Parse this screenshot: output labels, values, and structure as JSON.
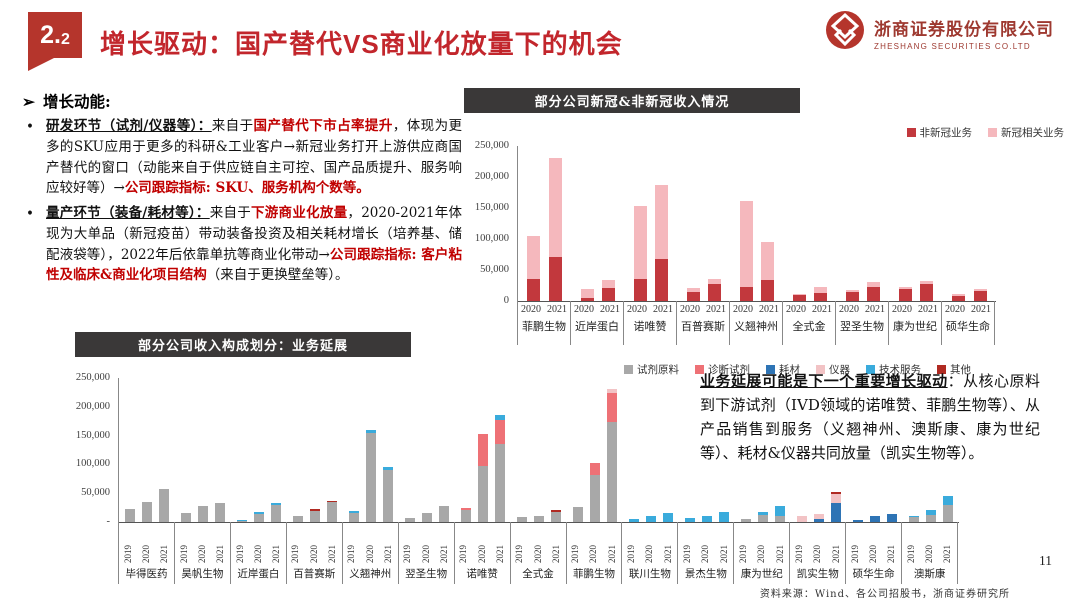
{
  "header": {
    "section_big": "2.",
    "section_small": "2",
    "title": "增长驱动：国产替代VS商业化放量下的机会",
    "logo": {
      "company_cn": "浙商证券股份有限公司",
      "company_en": "ZHESHANG SECURITIES CO.LTD"
    }
  },
  "left_panel": {
    "heading_marker": "➢",
    "heading": "增长动能:",
    "bullets": [
      {
        "marker": "•",
        "lead": "研发环节（试剂/仪器等）：",
        "segments": [
          {
            "t": "来自于"
          },
          {
            "t": "国产替代下市占率提升",
            "s": "hl"
          },
          {
            "t": "，体现为更多的SKU应用于更多的科研&工业客户→新冠业务打开上游供应商国产替代的窗口（动能来自于供应链自主可控、国产品质提升、服务响应较好等）→"
          },
          {
            "t": "公司跟踪指标: SKU、服务机构个数等。",
            "s": "hl"
          }
        ]
      },
      {
        "marker": "•",
        "lead": "量产环节（装备/耗材等）：",
        "segments": [
          {
            "t": "来自于"
          },
          {
            "t": "下游商业化放量",
            "s": "hl"
          },
          {
            "t": "，2020-2021年体现为大单品（新冠疫苗）带动装备投资及相关耗材增长（培养基、储配液袋等），2022年后依靠单抗等商业化带动→"
          },
          {
            "t": "公司跟踪指标: 客户粘性及临床&商业化项目结构",
            "s": "hl"
          },
          {
            "t": "（来自于更换壁垒等）。"
          }
        ]
      }
    ]
  },
  "note": {
    "segments": [
      {
        "t": "业务延展可能是下一个重要增长驱动",
        "s": "lead"
      },
      {
        "t": "：从核心原料到下游试剂（IVD领域的诺唯赞、菲鹏生物等）、从产品销售到服务（义翘神州、澳斯康、康为世纪等）、耗材&仪器共同放量（凯实生物等）。"
      }
    ]
  },
  "footer": {
    "source": "资料来源：Wind、各公司招股书，浙商证券研究所",
    "page_number": "11"
  },
  "chart_data": [
    {
      "type": "bar",
      "stacked": true,
      "title": "部分公司新冠&非新冠收入情况",
      "categories": [
        "菲鹏生物",
        "近岸蛋白",
        "诺唯赞",
        "百普赛斯",
        "义翘神州",
        "全式金",
        "翌圣生物",
        "康为世纪",
        "硕华生命"
      ],
      "x_sub": [
        "2020",
        "2021"
      ],
      "ylim": [
        0,
        250000
      ],
      "yticks": [
        "250,000",
        "200,000",
        "150,000",
        "100,000",
        "50,000",
        "0"
      ],
      "legend_position": "top-right",
      "grid": false,
      "series": [
        {
          "name": "非新冠业务",
          "color": "#c2383d",
          "values": [
            [
              36000,
              71000
            ],
            [
              5000,
              21000
            ],
            [
              36000,
              68000
            ],
            [
              14000,
              27000
            ],
            [
              22000,
              34000
            ],
            [
              10000,
              13000
            ],
            [
              14000,
              23000
            ],
            [
              19000,
              27000
            ],
            [
              8000,
              16000
            ]
          ]
        },
        {
          "name": "新冠相关业务",
          "color": "#f5b8bd",
          "values": [
            [
              69000,
              160000
            ],
            [
              14000,
              13000
            ],
            [
              118000,
              119000
            ],
            [
              7000,
              9000
            ],
            [
              139000,
              61000
            ],
            [
              1000,
              9000
            ],
            [
              4000,
              7000
            ],
            [
              3000,
              5000
            ],
            [
              4000,
              4000
            ]
          ]
        }
      ]
    },
    {
      "type": "bar",
      "stacked": true,
      "title": "部分公司收入构成划分：业务延展",
      "categories": [
        "毕得医药",
        "昊帆生物",
        "近岸蛋白",
        "百普赛斯",
        "义翘神州",
        "翌圣生物",
        "诺唯赞",
        "全式金",
        "菲鹏生物",
        "联川生物",
        "景杰生物",
        "康为世纪",
        "凯实生物",
        "硕华生命",
        "澳斯康"
      ],
      "x_sub": [
        "2019",
        "2020",
        "2021"
      ],
      "ylim": [
        0,
        250000
      ],
      "yticks": [
        "250,000",
        "200,000",
        "150,000",
        "100,000",
        "50,000",
        "-"
      ],
      "legend_position": "top-right",
      "grid": false,
      "series": [
        {
          "name": "试剂原料",
          "color": "#a8a8a8",
          "values": [
            [
              22000,
              34000,
              57000
            ],
            [
              16000,
              27000,
              33000
            ],
            [
              2000,
              14000,
              29000
            ],
            [
              10000,
              19000,
              35000
            ],
            [
              15000,
              155000,
              90000
            ],
            [
              7000,
              16000,
              28000
            ],
            [
              21000,
              97000,
              135000
            ],
            [
              8000,
              11000,
              18000
            ],
            [
              26000,
              81000,
              173000
            ],
            [
              0,
              0,
              0
            ],
            [
              0,
              0,
              0
            ],
            [
              5000,
              12000,
              11000
            ],
            [
              0,
              0,
              0
            ],
            [
              0,
              0,
              0
            ],
            [
              8000,
              13000,
              30000
            ]
          ]
        },
        {
          "name": "诊断试剂",
          "color": "#ee7176",
          "values": [
            [
              0,
              0,
              0
            ],
            [
              0,
              0,
              0
            ],
            [
              0,
              0,
              0
            ],
            [
              0,
              0,
              0
            ],
            [
              0,
              0,
              0
            ],
            [
              0,
              0,
              0
            ],
            [
              3000,
              56000,
              42000
            ],
            [
              0,
              0,
              0
            ],
            [
              0,
              21000,
              51000
            ],
            [
              0,
              0,
              0
            ],
            [
              0,
              0,
              0
            ],
            [
              0,
              0,
              0
            ],
            [
              0,
              0,
              0
            ],
            [
              0,
              0,
              0
            ],
            [
              0,
              0,
              0
            ]
          ]
        },
        {
          "name": "耗材",
          "color": "#2e74b5",
          "values": [
            [
              0,
              0,
              0
            ],
            [
              0,
              0,
              0
            ],
            [
              0,
              0,
              0
            ],
            [
              0,
              0,
              0
            ],
            [
              0,
              0,
              0
            ],
            [
              0,
              0,
              0
            ],
            [
              0,
              0,
              0
            ],
            [
              0,
              0,
              0
            ],
            [
              0,
              0,
              0
            ],
            [
              0,
              0,
              0
            ],
            [
              0,
              0,
              0
            ],
            [
              0,
              0,
              0
            ],
            [
              0,
              5000,
              33000
            ],
            [
              4000,
              10000,
              14000
            ],
            [
              0,
              0,
              0
            ]
          ]
        },
        {
          "name": "仪器",
          "color": "#f2c3c5",
          "values": [
            [
              0,
              0,
              0
            ],
            [
              0,
              0,
              0
            ],
            [
              0,
              0,
              0
            ],
            [
              0,
              0,
              0
            ],
            [
              0,
              0,
              0
            ],
            [
              0,
              0,
              0
            ],
            [
              0,
              0,
              0
            ],
            [
              0,
              0,
              0
            ],
            [
              0,
              0,
              7000
            ],
            [
              0,
              0,
              0
            ],
            [
              0,
              0,
              0
            ],
            [
              0,
              0,
              0
            ],
            [
              10000,
              9000,
              16000
            ],
            [
              0,
              0,
              0
            ],
            [
              0,
              0,
              0
            ]
          ]
        },
        {
          "name": "技术服务",
          "color": "#3aabdc",
          "values": [
            [
              0,
              0,
              0
            ],
            [
              0,
              0,
              0
            ],
            [
              1000,
              4000,
              4000
            ],
            [
              0,
              0,
              0
            ],
            [
              4000,
              5000,
              5000
            ],
            [
              0,
              0,
              0
            ],
            [
              0,
              0,
              8000
            ],
            [
              0,
              0,
              0
            ],
            [
              0,
              0,
              0
            ],
            [
              5000,
              10000,
              15000
            ],
            [
              7000,
              11000,
              17000
            ],
            [
              0,
              6000,
              16000
            ],
            [
              0,
              0,
              0
            ],
            [
              0,
              0,
              0
            ],
            [
              2000,
              8000,
              15000
            ]
          ]
        },
        {
          "name": "其他",
          "color": "#b02a22",
          "values": [
            [
              0,
              0,
              0
            ],
            [
              0,
              0,
              0
            ],
            [
              0,
              0,
              0
            ],
            [
              0,
              3000,
              1000
            ],
            [
              0,
              0,
              0
            ],
            [
              0,
              0,
              0
            ],
            [
              0,
              0,
              0
            ],
            [
              0,
              0,
              3000
            ],
            [
              0,
              0,
              0
            ],
            [
              0,
              0,
              0
            ],
            [
              0,
              0,
              0
            ],
            [
              0,
              0,
              0
            ],
            [
              0,
              0,
              3000
            ],
            [
              0,
              0,
              0
            ],
            [
              0,
              0,
              0
            ]
          ]
        }
      ]
    }
  ]
}
